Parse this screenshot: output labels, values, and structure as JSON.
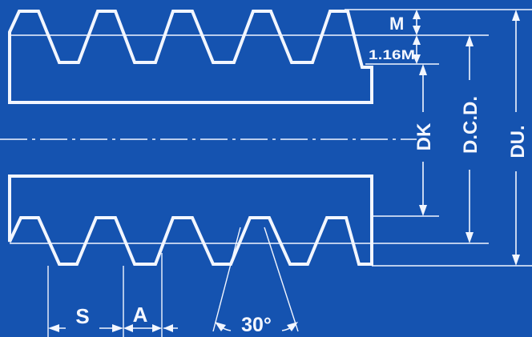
{
  "drawing": {
    "colors": {
      "background": "#1553b0",
      "ink": "#f2f6ff",
      "hatch": "#8fb2ea"
    },
    "labels": {
      "addendum": "M",
      "dedendum": "1.16M",
      "root_diameter": "DK",
      "pitch_diameter": "D.C.D.",
      "outer_diameter": "DU.",
      "tooth_thickness": "S",
      "space_width": "A",
      "thread_angle": "30°"
    }
  }
}
